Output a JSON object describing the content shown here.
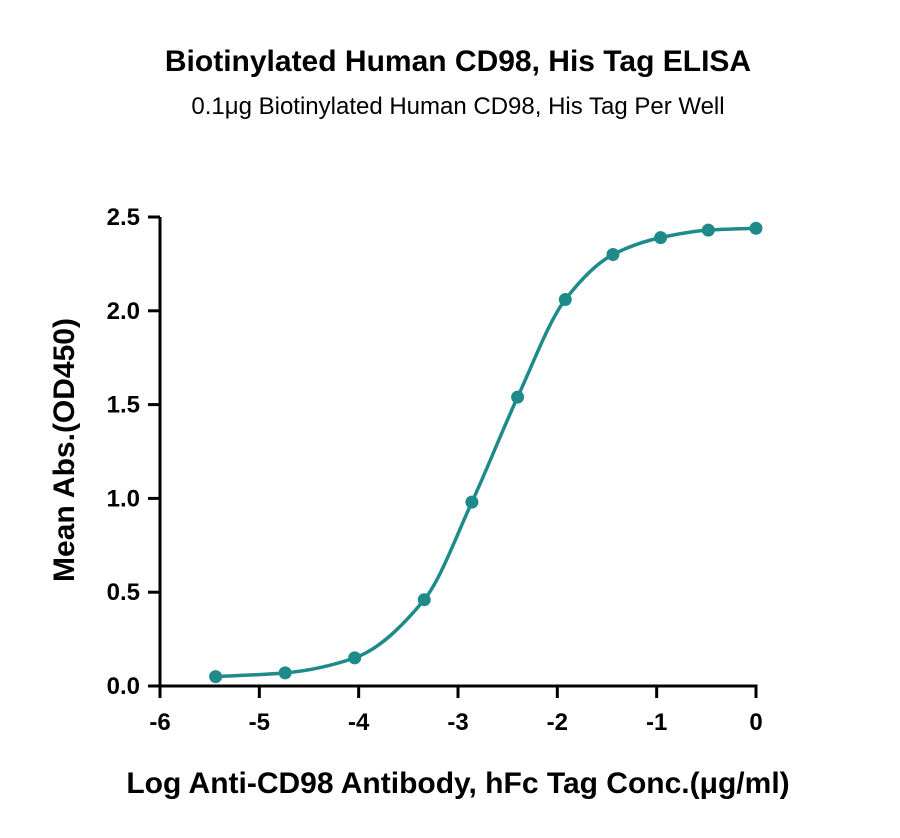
{
  "chart_data": {
    "type": "scatter",
    "title": "Biotinylated  Human CD98, His Tag ELISA",
    "subtitle": "0.1μg Biotinylated  Human CD98, His Tag Per Well",
    "xlabel": "Log Anti-CD98 Antibody, hFc Tag Conc.(μg/ml)",
    "ylabel": "Mean Abs.(OD450)",
    "xlim": [
      -6,
      0
    ],
    "ylim": [
      0.0,
      2.5
    ],
    "x_ticks": [
      -6,
      -5,
      -4,
      -3,
      -2,
      -1,
      0
    ],
    "x_tick_labels": [
      "-6",
      "-5",
      "-4",
      "-3",
      "-2",
      "-1",
      "0"
    ],
    "y_ticks": [
      0.0,
      0.5,
      1.0,
      1.5,
      2.0,
      2.5
    ],
    "y_tick_labels": [
      "0.0",
      "0.5",
      "1.0",
      "1.5",
      "2.0",
      "2.5"
    ],
    "grid": false,
    "series": [
      {
        "color": "#1f8a8a",
        "fit": "4PL sigmoidal curve",
        "points": [
          {
            "x": -5.44,
            "y": 0.05
          },
          {
            "x": -4.74,
            "y": 0.07
          },
          {
            "x": -4.04,
            "y": 0.15
          },
          {
            "x": -3.34,
            "y": 0.46
          },
          {
            "x": -2.86,
            "y": 0.98
          },
          {
            "x": -2.4,
            "y": 1.54
          },
          {
            "x": -1.92,
            "y": 2.06
          },
          {
            "x": -1.44,
            "y": 2.3
          },
          {
            "x": -0.96,
            "y": 2.39
          },
          {
            "x": -0.48,
            "y": 2.43
          },
          {
            "x": 0.0,
            "y": 2.44
          }
        ]
      }
    ]
  }
}
